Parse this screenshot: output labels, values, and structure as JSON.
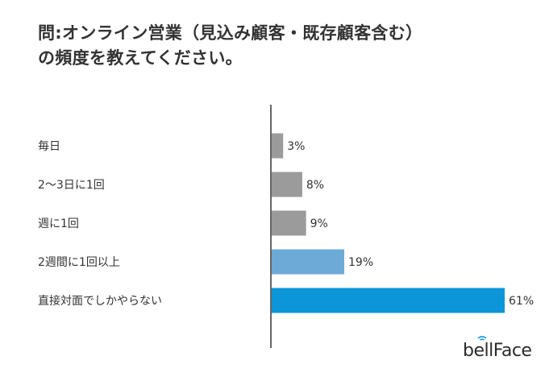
{
  "title": "問:オンライン営業（見込み顧客・既存顧客含む）\nの頻度を教えてください。",
  "logo": {
    "text": "bellFace",
    "icon": "wifi-signal-icon"
  },
  "colors": {
    "gray": "#9b9b9b",
    "light_blue": "#6eaad8",
    "blue": "#0c96d9",
    "axis": "#333333"
  },
  "chart_data": {
    "type": "bar",
    "orientation": "horizontal",
    "categories": [
      "毎日",
      "2〜3日に1回",
      "週に1回",
      "2週間に1回以上",
      "直接対面でしかやらない"
    ],
    "values": [
      3,
      8,
      9,
      19,
      61
    ],
    "value_labels": [
      "3%",
      "8%",
      "9%",
      "19%",
      "61%"
    ],
    "bar_colors": [
      "#9b9b9b",
      "#9b9b9b",
      "#9b9b9b",
      "#6eaad8",
      "#0c96d9"
    ],
    "unit": "%",
    "xlim": [
      0,
      100
    ],
    "grid": false,
    "legend": "none"
  }
}
